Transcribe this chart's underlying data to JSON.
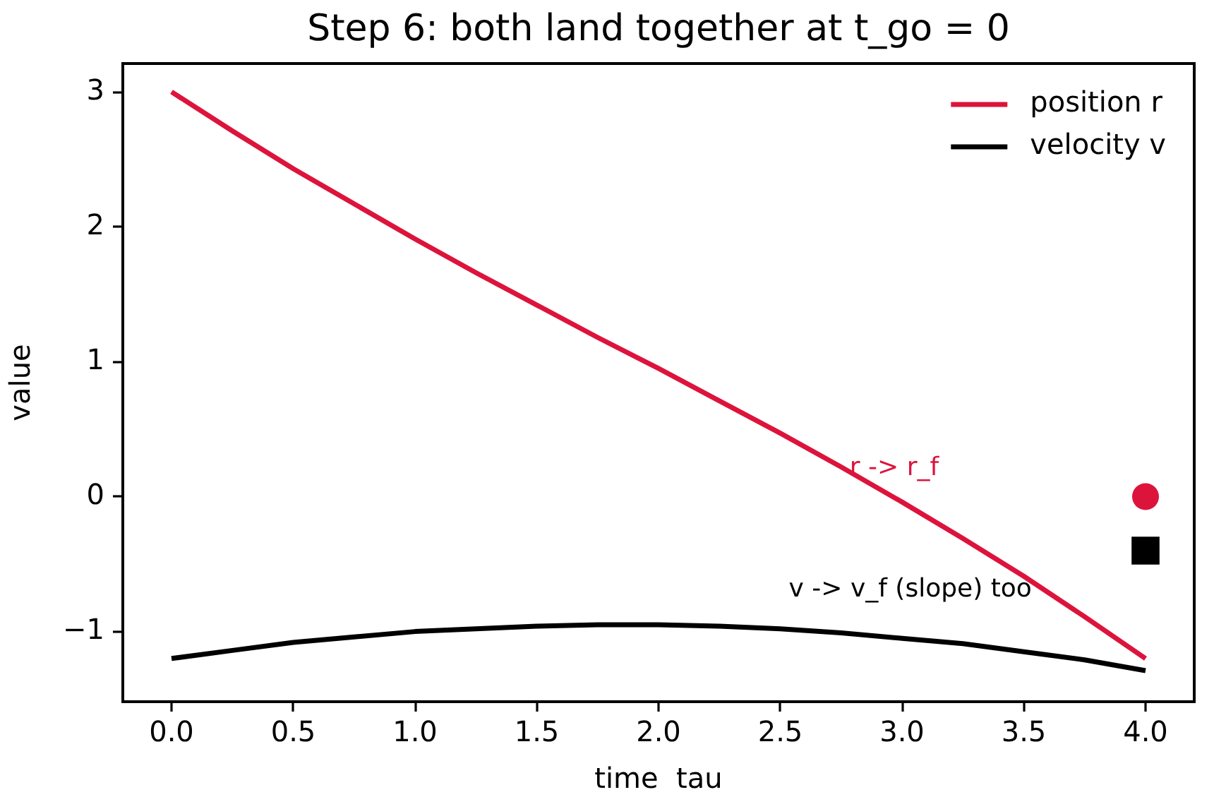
{
  "chart_data": {
    "type": "line",
    "title": "Step 6: both land together at t_go = 0",
    "xlabel": "time  tau",
    "ylabel": "value",
    "x": [
      0,
      0.25,
      0.5,
      0.75,
      1,
      1.25,
      1.5,
      1.75,
      2,
      2.25,
      2.5,
      2.75,
      3,
      3.25,
      3.5,
      3.75,
      4
    ],
    "series": [
      {
        "name": "position r",
        "color": "#dc143c",
        "values": [
          3.0,
          2.71,
          2.43,
          2.17,
          1.91,
          1.66,
          1.42,
          1.18,
          0.95,
          0.71,
          0.47,
          0.22,
          -0.04,
          -0.31,
          -0.59,
          -0.89,
          -1.2
        ]
      },
      {
        "name": "velocity v",
        "color": "#000000",
        "values": [
          -1.2,
          -1.14,
          -1.08,
          -1.04,
          -1.0,
          -0.98,
          -0.96,
          -0.95,
          -0.95,
          -0.96,
          -0.98,
          -1.01,
          -1.05,
          -1.09,
          -1.15,
          -1.21,
          -1.29
        ]
      },
      {
        "type": "scatter",
        "x": [
          4.0
        ],
        "color": "#dc143c",
        "marker": "circle",
        "values": [
          0.0
        ]
      },
      {
        "type": "scatter",
        "x": [
          4.0
        ],
        "color": "#000000",
        "marker": "square",
        "values": [
          -0.4
        ]
      }
    ],
    "xlim": [
      -0.2,
      4.2
    ],
    "xticks": [
      {
        "value": 0,
        "label": "0.0"
      },
      {
        "value": 0.5,
        "label": "0.5"
      },
      {
        "value": 1,
        "label": "1.0"
      },
      {
        "value": 1.5,
        "label": "1.5"
      },
      {
        "value": 2,
        "label": "2.0"
      },
      {
        "value": 2.5,
        "label": "2.5"
      },
      {
        "value": 3,
        "label": "3.0"
      },
      {
        "value": 3.5,
        "label": "3.5"
      },
      {
        "value": 4,
        "label": "4.0"
      }
    ],
    "ylim": [
      -1.52,
      3.21
    ],
    "yticks": [
      {
        "value": -1,
        "label": "−1"
      },
      0,
      1,
      2,
      3
    ],
    "grid": false,
    "legend": "top right",
    "annotations": [
      "r -> r_f",
      "v -> v_f (slope) too"
    ]
  }
}
